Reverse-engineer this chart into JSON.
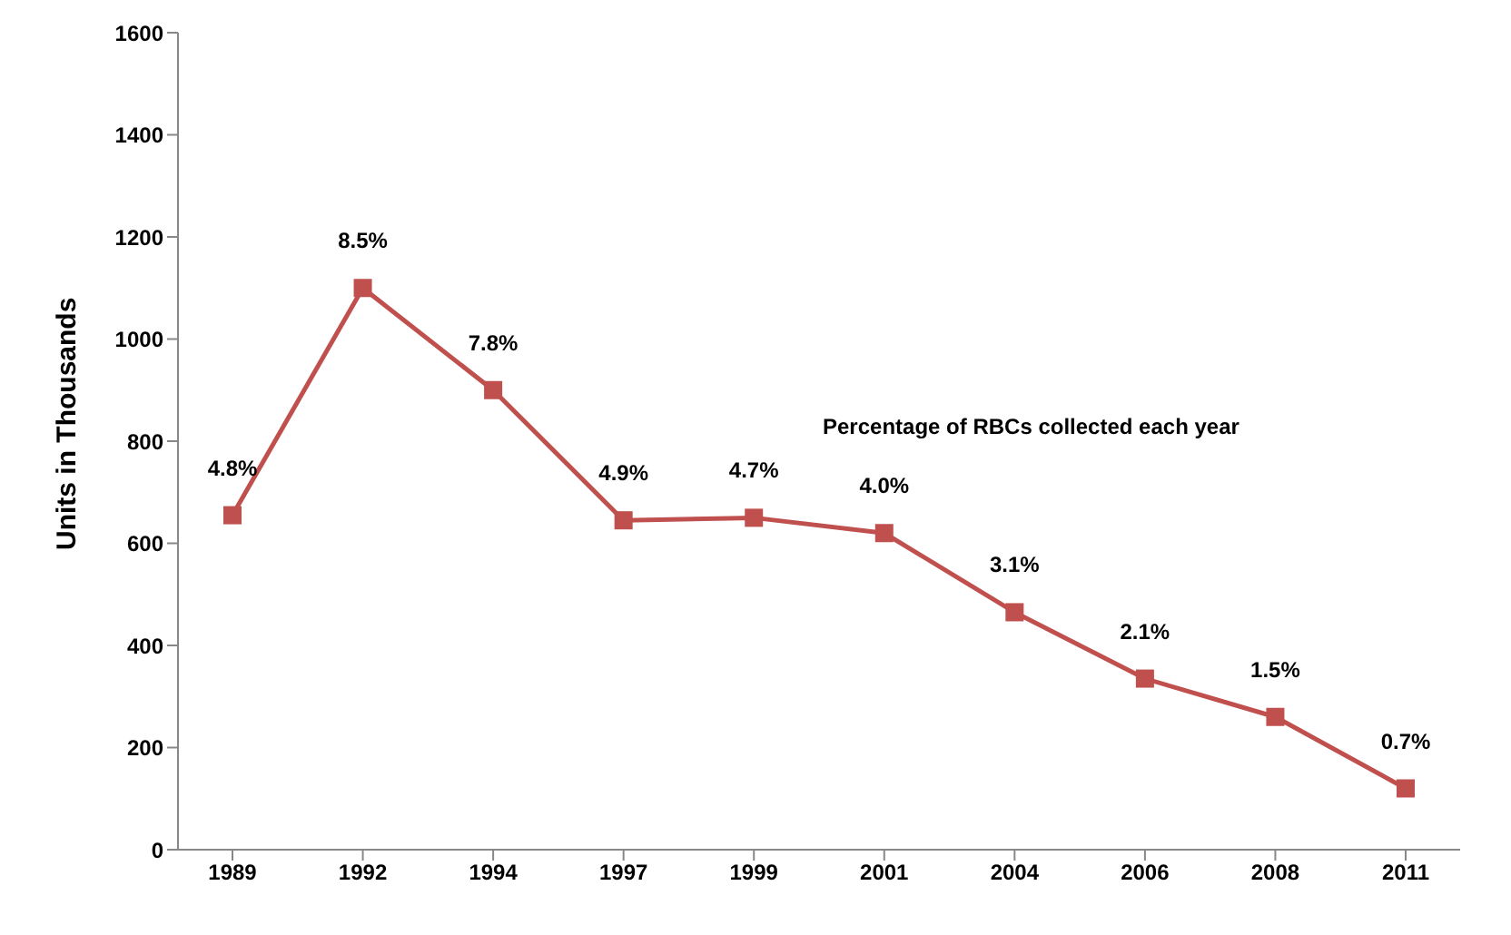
{
  "chart_data": {
    "type": "line",
    "ylabel": "Units in Thousands",
    "categories": [
      "1989",
      "1992",
      "1994",
      "1997",
      "1999",
      "2001",
      "2004",
      "2006",
      "2008",
      "2011"
    ],
    "series": [
      {
        "color": "#c0504d",
        "values": [
          655,
          1100,
          900,
          645,
          650,
          620,
          465,
          335,
          260,
          120
        ]
      }
    ],
    "ylim": [
      0,
      1600
    ],
    "yticks": [
      0,
      200,
      400,
      600,
      800,
      1000,
      1200,
      1400,
      1600
    ],
    "annotations": [
      "Percentage of RBCs collected each year",
      {
        "text": "4.8%",
        "x": "1989",
        "y": 655
      },
      {
        "text": "8.5%",
        "x": "1992",
        "y": 1100
      },
      {
        "text": "7.8%",
        "x": "1994",
        "y": 900
      },
      {
        "text": "4.9%",
        "x": "1997",
        "y": 645
      },
      {
        "text": "4.7%",
        "x": "1999",
        "y": 650
      },
      {
        "text": "4.0%",
        "x": "2001",
        "y": 620
      },
      {
        "text": "3.1%",
        "x": "2004",
        "y": 465
      },
      {
        "text": "2.1%",
        "x": "2006",
        "y": 335
      },
      {
        "text": "1.5%",
        "x": "2008",
        "y": 260
      },
      {
        "text": "0.7%",
        "x": "2011",
        "y": 120
      }
    ],
    "grid": false,
    "legend": false,
    "marker": "square",
    "line_style": "solid"
  }
}
